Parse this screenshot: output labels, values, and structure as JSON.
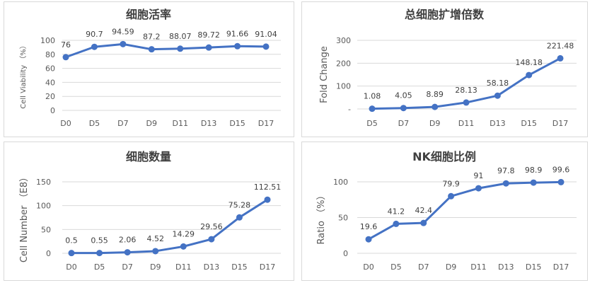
{
  "line_color": "#4472c4",
  "chart_data": [
    {
      "type": "line",
      "title": "细胞活率",
      "ylabel": "Cell Viability （%）",
      "xlabel": "",
      "categories": [
        "D0",
        "D5",
        "D7",
        "D9",
        "D11",
        "D13",
        "D15",
        "D17"
      ],
      "values": [
        76,
        90.7,
        94.59,
        87.2,
        88.07,
        89.72,
        91.66,
        91.04
      ],
      "data_labels": [
        "76",
        "90.7",
        "94.59",
        "87.2",
        "88.07",
        "89.72",
        "91.66",
        "91.04"
      ],
      "ylim": [
        0,
        100
      ],
      "yticks": [
        0,
        20,
        40,
        60,
        80,
        100
      ],
      "ytick_labels": [
        "0",
        "20",
        "40",
        "60",
        "80",
        "100"
      ],
      "grid": true
    },
    {
      "type": "line",
      "title": "总细胞扩增倍数",
      "ylabel": "Fold Change",
      "xlabel": "",
      "categories": [
        "D5",
        "D7",
        "D9",
        "D11",
        "D13",
        "D15",
        "D17"
      ],
      "values": [
        1.08,
        4.05,
        8.89,
        28.13,
        58.18,
        148.18,
        221.48
      ],
      "data_labels": [
        "1.08",
        "4.05",
        "8.89",
        "28.13",
        "58.18",
        "148.18",
        "221.48"
      ],
      "ylim": [
        0,
        300
      ],
      "yticks": [
        0,
        100,
        200,
        300
      ],
      "ytick_labels": [
        "-",
        "100",
        "200",
        "300"
      ],
      "grid": true
    },
    {
      "type": "line",
      "title": "细胞数量",
      "ylabel": "Cell Number （E8）",
      "xlabel": "",
      "categories": [
        "D0",
        "D5",
        "D7",
        "D9",
        "D11",
        "D13",
        "D15",
        "D17"
      ],
      "values": [
        0.5,
        0.55,
        2.06,
        4.52,
        14.29,
        29.56,
        75.28,
        112.51
      ],
      "data_labels": [
        "0.5",
        "0.55",
        "2.06",
        "4.52",
        "14.29",
        "29.56",
        "75.28",
        "112.51"
      ],
      "ylim": [
        0,
        150
      ],
      "yticks": [
        0,
        50,
        100,
        150
      ],
      "ytick_labels": [
        "0",
        "50",
        "100",
        "150"
      ],
      "grid": true
    },
    {
      "type": "line",
      "title": "NK细胞比例",
      "ylabel": "Ratio （%）",
      "xlabel": "",
      "categories": [
        "D0",
        "D5",
        "D7",
        "D9",
        "D11",
        "D13",
        "D15",
        "D17"
      ],
      "values": [
        19.6,
        41.2,
        42.4,
        79.9,
        91,
        97.8,
        98.9,
        99.6
      ],
      "data_labels": [
        "19.6",
        "41.2",
        "42.4",
        "79.9",
        "91",
        "97.8",
        "98.9",
        "99.6"
      ],
      "ylim": [
        0,
        100
      ],
      "yticks": [
        0,
        50,
        100
      ],
      "ytick_labels": [
        "0",
        "50",
        "100"
      ],
      "grid": true
    }
  ]
}
